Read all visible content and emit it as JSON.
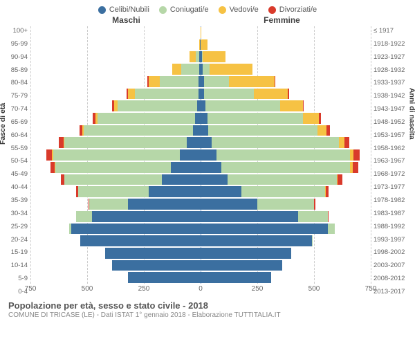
{
  "legend": [
    {
      "label": "Celibi/Nubili",
      "color": "#3b6fa0"
    },
    {
      "label": "Coniugati/e",
      "color": "#b6d7a8"
    },
    {
      "label": "Vedovi/e",
      "color": "#f6c244"
    },
    {
      "label": "Divorziati/e",
      "color": "#d93a2b"
    }
  ],
  "gender": {
    "male": "Maschi",
    "female": "Femmine"
  },
  "axis": {
    "left_title": "Fasce di età",
    "right_title": "Anni di nascita"
  },
  "x": {
    "max": 750,
    "ticks": [
      750,
      500,
      250,
      0,
      250,
      500,
      750
    ]
  },
  "colors": {
    "celibi": "#3b6fa0",
    "coniugati": "#b6d7a8",
    "vedovi": "#f6c244",
    "divorziati": "#d93a2b",
    "grid": "#cccccc",
    "center": "#7a9acb"
  },
  "age_bands": [
    {
      "age": "100+",
      "birth": "≤ 1917",
      "m": [
        0,
        0,
        0,
        0
      ],
      "f": [
        0,
        0,
        2,
        0
      ]
    },
    {
      "age": "95-99",
      "birth": "1918-1922",
      "m": [
        2,
        0,
        5,
        0
      ],
      "f": [
        0,
        0,
        30,
        0
      ]
    },
    {
      "age": "90-94",
      "birth": "1923-1927",
      "m": [
        5,
        15,
        30,
        0
      ],
      "f": [
        5,
        5,
        100,
        0
      ]
    },
    {
      "age": "85-89",
      "birth": "1928-1932",
      "m": [
        5,
        80,
        40,
        0
      ],
      "f": [
        10,
        30,
        190,
        0
      ]
    },
    {
      "age": "80-84",
      "birth": "1933-1937",
      "m": [
        10,
        170,
        50,
        5
      ],
      "f": [
        15,
        110,
        200,
        5
      ]
    },
    {
      "age": "75-79",
      "birth": "1938-1942",
      "m": [
        10,
        280,
        30,
        5
      ],
      "f": [
        15,
        220,
        150,
        5
      ]
    },
    {
      "age": "70-74",
      "birth": "1943-1947",
      "m": [
        15,
        350,
        15,
        10
      ],
      "f": [
        20,
        330,
        100,
        5
      ]
    },
    {
      "age": "65-69",
      "birth": "1948-1952",
      "m": [
        25,
        430,
        10,
        10
      ],
      "f": [
        30,
        420,
        70,
        10
      ]
    },
    {
      "age": "60-64",
      "birth": "1953-1957",
      "m": [
        35,
        480,
        5,
        15
      ],
      "f": [
        35,
        480,
        40,
        15
      ]
    },
    {
      "age": "55-59",
      "birth": "1958-1962",
      "m": [
        60,
        540,
        5,
        20
      ],
      "f": [
        50,
        560,
        25,
        20
      ]
    },
    {
      "age": "50-54",
      "birth": "1963-1967",
      "m": [
        90,
        560,
        5,
        25
      ],
      "f": [
        70,
        590,
        15,
        25
      ]
    },
    {
      "age": "45-49",
      "birth": "1968-1972",
      "m": [
        130,
        510,
        3,
        20
      ],
      "f": [
        90,
        570,
        10,
        25
      ]
    },
    {
      "age": "40-44",
      "birth": "1973-1977",
      "m": [
        170,
        430,
        2,
        15
      ],
      "f": [
        120,
        480,
        5,
        20
      ]
    },
    {
      "age": "35-39",
      "birth": "1978-1982",
      "m": [
        230,
        310,
        0,
        10
      ],
      "f": [
        180,
        370,
        3,
        10
      ]
    },
    {
      "age": "30-34",
      "birth": "1983-1987",
      "m": [
        320,
        170,
        0,
        5
      ],
      "f": [
        250,
        250,
        0,
        5
      ]
    },
    {
      "age": "25-29",
      "birth": "1988-1992",
      "m": [
        480,
        70,
        0,
        0
      ],
      "f": [
        430,
        130,
        0,
        2
      ]
    },
    {
      "age": "20-24",
      "birth": "1993-1997",
      "m": [
        570,
        10,
        0,
        0
      ],
      "f": [
        560,
        30,
        0,
        0
      ]
    },
    {
      "age": "15-19",
      "birth": "1998-2002",
      "m": [
        530,
        0,
        0,
        0
      ],
      "f": [
        490,
        2,
        0,
        0
      ]
    },
    {
      "age": "10-14",
      "birth": "2003-2007",
      "m": [
        420,
        0,
        0,
        0
      ],
      "f": [
        400,
        0,
        0,
        0
      ]
    },
    {
      "age": "5-9",
      "birth": "2008-2012",
      "m": [
        390,
        0,
        0,
        0
      ],
      "f": [
        360,
        0,
        0,
        0
      ]
    },
    {
      "age": "0-4",
      "birth": "2013-2017",
      "m": [
        320,
        0,
        0,
        0
      ],
      "f": [
        310,
        0,
        0,
        0
      ]
    }
  ],
  "footer": {
    "title": "Popolazione per età, sesso e stato civile - 2018",
    "subtitle": "COMUNE DI TRICASE (LE) - Dati ISTAT 1° gennaio 2018 - Elaborazione TUTTITALIA.IT"
  }
}
